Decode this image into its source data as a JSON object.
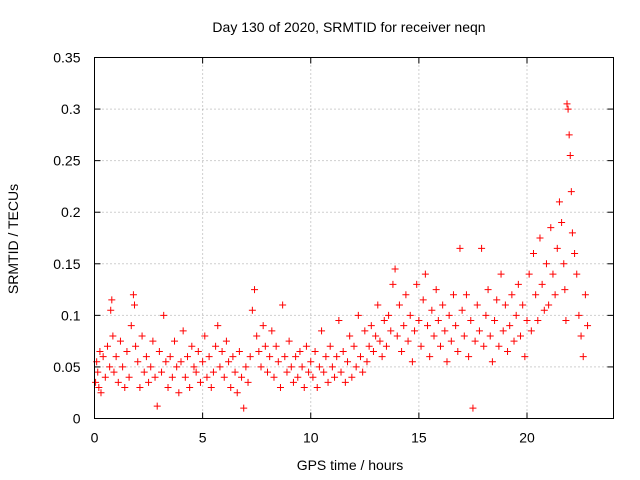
{
  "chart_data": {
    "type": "scatter",
    "title": "Day 130 of 2020, SRMTID for receiver neqn",
    "xlabel": "GPS time / hours",
    "ylabel": "SRMTID / TECUs",
    "xlim": [
      0,
      24
    ],
    "ylim": [
      0,
      0.35
    ],
    "xticks": [
      0,
      5,
      10,
      15,
      20
    ],
    "xtick_labels": [
      "0",
      "5",
      "10",
      "15",
      "20"
    ],
    "yticks": [
      0,
      0.05,
      0.1,
      0.15,
      0.2,
      0.25,
      0.3,
      0.35
    ],
    "ytick_labels": [
      "0",
      "0.05",
      "0.1",
      "0.15",
      "0.2",
      "0.25",
      "0.3",
      "0.35"
    ],
    "grid": true,
    "marker": "+",
    "color": "#ff0000",
    "series": [
      {
        "name": "SRMTID",
        "points": [
          [
            0.05,
            0.035
          ],
          [
            0.1,
            0.055
          ],
          [
            0.15,
            0.045
          ],
          [
            0.2,
            0.03
          ],
          [
            0.25,
            0.065
          ],
          [
            0.3,
            0.025
          ],
          [
            0.4,
            0.06
          ],
          [
            0.5,
            0.04
          ],
          [
            0.6,
            0.07
          ],
          [
            0.7,
            0.05
          ],
          [
            0.75,
            0.105
          ],
          [
            0.8,
            0.115
          ],
          [
            0.85,
            0.08
          ],
          [
            0.9,
            0.045
          ],
          [
            1.0,
            0.06
          ],
          [
            1.1,
            0.035
          ],
          [
            1.2,
            0.075
          ],
          [
            1.3,
            0.05
          ],
          [
            1.4,
            0.03
          ],
          [
            1.5,
            0.065
          ],
          [
            1.6,
            0.04
          ],
          [
            1.7,
            0.09
          ],
          [
            1.8,
            0.12
          ],
          [
            1.85,
            0.11
          ],
          [
            1.9,
            0.07
          ],
          [
            2.0,
            0.055
          ],
          [
            2.1,
            0.03
          ],
          [
            2.2,
            0.08
          ],
          [
            2.3,
            0.045
          ],
          [
            2.4,
            0.06
          ],
          [
            2.5,
            0.035
          ],
          [
            2.6,
            0.05
          ],
          [
            2.7,
            0.075
          ],
          [
            2.8,
            0.04
          ],
          [
            2.9,
            0.012
          ],
          [
            3.0,
            0.065
          ],
          [
            3.1,
            0.045
          ],
          [
            3.2,
            0.1
          ],
          [
            3.3,
            0.055
          ],
          [
            3.4,
            0.03
          ],
          [
            3.5,
            0.06
          ],
          [
            3.6,
            0.04
          ],
          [
            3.7,
            0.075
          ],
          [
            3.8,
            0.05
          ],
          [
            3.9,
            0.025
          ],
          [
            4.0,
            0.055
          ],
          [
            4.1,
            0.085
          ],
          [
            4.2,
            0.04
          ],
          [
            4.3,
            0.06
          ],
          [
            4.4,
            0.03
          ],
          [
            4.5,
            0.07
          ],
          [
            4.6,
            0.05
          ],
          [
            4.7,
            0.045
          ],
          [
            4.8,
            0.065
          ],
          [
            4.9,
            0.035
          ],
          [
            5.0,
            0.055
          ],
          [
            5.1,
            0.08
          ],
          [
            5.2,
            0.04
          ],
          [
            5.3,
            0.06
          ],
          [
            5.4,
            0.03
          ],
          [
            5.5,
            0.045
          ],
          [
            5.6,
            0.07
          ],
          [
            5.7,
            0.09
          ],
          [
            5.8,
            0.05
          ],
          [
            5.9,
            0.065
          ],
          [
            6.0,
            0.04
          ],
          [
            6.1,
            0.075
          ],
          [
            6.2,
            0.055
          ],
          [
            6.3,
            0.03
          ],
          [
            6.4,
            0.06
          ],
          [
            6.5,
            0.045
          ],
          [
            6.6,
            0.025
          ],
          [
            6.7,
            0.065
          ],
          [
            6.8,
            0.04
          ],
          [
            6.9,
            0.01
          ],
          [
            7.0,
            0.05
          ],
          [
            7.1,
            0.035
          ],
          [
            7.2,
            0.06
          ],
          [
            7.3,
            0.105
          ],
          [
            7.4,
            0.125
          ],
          [
            7.5,
            0.08
          ],
          [
            7.6,
            0.065
          ],
          [
            7.7,
            0.05
          ],
          [
            7.8,
            0.09
          ],
          [
            7.9,
            0.07
          ],
          [
            8.0,
            0.045
          ],
          [
            8.1,
            0.06
          ],
          [
            8.2,
            0.085
          ],
          [
            8.3,
            0.04
          ],
          [
            8.4,
            0.07
          ],
          [
            8.5,
            0.055
          ],
          [
            8.6,
            0.03
          ],
          [
            8.7,
            0.11
          ],
          [
            8.8,
            0.06
          ],
          [
            8.9,
            0.045
          ],
          [
            9.0,
            0.075
          ],
          [
            9.1,
            0.05
          ],
          [
            9.2,
            0.035
          ],
          [
            9.3,
            0.06
          ],
          [
            9.4,
            0.04
          ],
          [
            9.5,
            0.065
          ],
          [
            9.6,
            0.05
          ],
          [
            9.7,
            0.03
          ],
          [
            9.8,
            0.07
          ],
          [
            9.9,
            0.045
          ],
          [
            10.0,
            0.055
          ],
          [
            10.1,
            0.04
          ],
          [
            10.2,
            0.065
          ],
          [
            10.3,
            0.03
          ],
          [
            10.4,
            0.05
          ],
          [
            10.5,
            0.085
          ],
          [
            10.6,
            0.045
          ],
          [
            10.7,
            0.06
          ],
          [
            10.8,
            0.035
          ],
          [
            10.9,
            0.07
          ],
          [
            11.0,
            0.05
          ],
          [
            11.1,
            0.04
          ],
          [
            11.2,
            0.06
          ],
          [
            11.3,
            0.095
          ],
          [
            11.4,
            0.045
          ],
          [
            11.5,
            0.065
          ],
          [
            11.6,
            0.035
          ],
          [
            11.7,
            0.055
          ],
          [
            11.8,
            0.08
          ],
          [
            11.9,
            0.04
          ],
          [
            12.0,
            0.07
          ],
          [
            12.1,
            0.05
          ],
          [
            12.2,
            0.1
          ],
          [
            12.3,
            0.06
          ],
          [
            12.4,
            0.045
          ],
          [
            12.5,
            0.085
          ],
          [
            12.6,
            0.055
          ],
          [
            12.7,
            0.07
          ],
          [
            12.8,
            0.09
          ],
          [
            12.9,
            0.065
          ],
          [
            13.0,
            0.08
          ],
          [
            13.1,
            0.11
          ],
          [
            13.2,
            0.075
          ],
          [
            13.3,
            0.06
          ],
          [
            13.4,
            0.095
          ],
          [
            13.5,
            0.07
          ],
          [
            13.6,
            0.1
          ],
          [
            13.7,
            0.085
          ],
          [
            13.8,
            0.13
          ],
          [
            13.9,
            0.145
          ],
          [
            14.0,
            0.08
          ],
          [
            14.1,
            0.11
          ],
          [
            14.2,
            0.065
          ],
          [
            14.3,
            0.09
          ],
          [
            14.4,
            0.12
          ],
          [
            14.5,
            0.075
          ],
          [
            14.6,
            0.1
          ],
          [
            14.7,
            0.055
          ],
          [
            14.8,
            0.085
          ],
          [
            14.9,
            0.13
          ],
          [
            15.0,
            0.095
          ],
          [
            15.1,
            0.07
          ],
          [
            15.2,
            0.115
          ],
          [
            15.3,
            0.14
          ],
          [
            15.4,
            0.09
          ],
          [
            15.5,
            0.06
          ],
          [
            15.6,
            0.105
          ],
          [
            15.7,
            0.08
          ],
          [
            15.8,
            0.125
          ],
          [
            15.9,
            0.095
          ],
          [
            16.0,
            0.07
          ],
          [
            16.1,
            0.11
          ],
          [
            16.2,
            0.085
          ],
          [
            16.3,
            0.055
          ],
          [
            16.4,
            0.1
          ],
          [
            16.5,
            0.075
          ],
          [
            16.6,
            0.12
          ],
          [
            16.7,
            0.09
          ],
          [
            16.8,
            0.065
          ],
          [
            16.9,
            0.165
          ],
          [
            17.0,
            0.105
          ],
          [
            17.1,
            0.08
          ],
          [
            17.2,
            0.12
          ],
          [
            17.3,
            0.06
          ],
          [
            17.4,
            0.095
          ],
          [
            17.5,
            0.01
          ],
          [
            17.6,
            0.075
          ],
          [
            17.7,
            0.11
          ],
          [
            17.8,
            0.085
          ],
          [
            17.9,
            0.165
          ],
          [
            18.0,
            0.07
          ],
          [
            18.1,
            0.1
          ],
          [
            18.2,
            0.125
          ],
          [
            18.3,
            0.08
          ],
          [
            18.4,
            0.055
          ],
          [
            18.5,
            0.095
          ],
          [
            18.6,
            0.115
          ],
          [
            18.7,
            0.07
          ],
          [
            18.8,
            0.14
          ],
          [
            18.9,
            0.085
          ],
          [
            19.0,
            0.11
          ],
          [
            19.1,
            0.065
          ],
          [
            19.2,
            0.09
          ],
          [
            19.3,
            0.12
          ],
          [
            19.4,
            0.075
          ],
          [
            19.5,
            0.1
          ],
          [
            19.6,
            0.13
          ],
          [
            19.7,
            0.08
          ],
          [
            19.8,
            0.11
          ],
          [
            19.9,
            0.06
          ],
          [
            20.0,
            0.095
          ],
          [
            20.1,
            0.14
          ],
          [
            20.2,
            0.085
          ],
          [
            20.3,
            0.16
          ],
          [
            20.4,
            0.12
          ],
          [
            20.5,
            0.095
          ],
          [
            20.6,
            0.175
          ],
          [
            20.7,
            0.13
          ],
          [
            20.8,
            0.105
          ],
          [
            20.9,
            0.15
          ],
          [
            21.0,
            0.11
          ],
          [
            21.1,
            0.185
          ],
          [
            21.2,
            0.14
          ],
          [
            21.3,
            0.12
          ],
          [
            21.4,
            0.165
          ],
          [
            21.5,
            0.21
          ],
          [
            21.6,
            0.19
          ],
          [
            21.7,
            0.15
          ],
          [
            21.75,
            0.125
          ],
          [
            21.8,
            0.095
          ],
          [
            21.85,
            0.305
          ],
          [
            21.9,
            0.3
          ],
          [
            21.95,
            0.275
          ],
          [
            22.0,
            0.255
          ],
          [
            22.05,
            0.22
          ],
          [
            22.1,
            0.18
          ],
          [
            22.2,
            0.16
          ],
          [
            22.3,
            0.14
          ],
          [
            22.4,
            0.1
          ],
          [
            22.5,
            0.08
          ],
          [
            22.6,
            0.06
          ],
          [
            22.7,
            0.12
          ],
          [
            22.8,
            0.09
          ]
        ]
      }
    ]
  }
}
